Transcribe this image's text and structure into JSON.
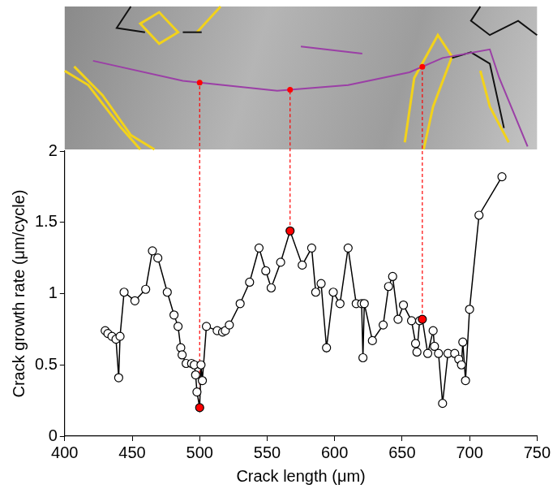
{
  "chart_data": {
    "type": "line",
    "xlabel": "Crack length (μm)",
    "ylabel": "Crack growth rate (μm/cycle)",
    "x": [
      430,
      432,
      435,
      438,
      440,
      441,
      444,
      452,
      460,
      465,
      469,
      476,
      481,
      484,
      486,
      487,
      490,
      494,
      496,
      497,
      498,
      500,
      501,
      502,
      505,
      513,
      517,
      519,
      522,
      530,
      537,
      544,
      549,
      553,
      560,
      567,
      576,
      583,
      586,
      590,
      594,
      599,
      604,
      610,
      616,
      620,
      621,
      622,
      628,
      636,
      640,
      643,
      647,
      651,
      657,
      660,
      661,
      663,
      665,
      669,
      673,
      674,
      677,
      680,
      684,
      689,
      692,
      694,
      695,
      697,
      700,
      707,
      724
    ],
    "values": [
      0.74,
      0.72,
      0.7,
      0.68,
      0.41,
      0.7,
      1.01,
      0.95,
      1.03,
      1.3,
      1.25,
      1.01,
      0.85,
      0.77,
      0.62,
      0.57,
      0.51,
      0.51,
      0.5,
      0.43,
      0.31,
      0.2,
      0.5,
      0.39,
      0.77,
      0.74,
      0.73,
      0.74,
      0.78,
      0.93,
      1.08,
      1.32,
      1.16,
      1.04,
      1.22,
      1.44,
      1.2,
      1.32,
      1.01,
      1.07,
      0.62,
      1.01,
      0.93,
      1.32,
      0.93,
      0.93,
      0.55,
      0.93,
      0.67,
      0.78,
      1.05,
      1.12,
      0.82,
      0.92,
      0.81,
      0.65,
      0.59,
      0.81,
      0.82,
      0.58,
      0.74,
      0.63,
      0.58,
      0.23,
      0.58,
      0.58,
      0.54,
      0.5,
      0.66,
      0.39,
      0.89,
      1.55,
      1.82
    ],
    "color": "#000000",
    "colors": [
      "#ffffff",
      "#ffffff",
      "#ffffff",
      "#ffffff",
      "#ffffff",
      "#ffffff",
      "#ffffff",
      "#ffffff",
      "#ffffff",
      "#ffffff",
      "#ffffff",
      "#ffffff",
      "#ffffff",
      "#ffffff",
      "#ffffff",
      "#ffffff",
      "#ffffff",
      "#ffffff",
      "#ffffff",
      "#ffffff",
      "#ffffff",
      "#ff0000",
      "#ffffff",
      "#ffffff",
      "#ffffff",
      "#ffffff",
      "#ffffff",
      "#ffffff",
      "#ffffff",
      "#ffffff",
      "#ffffff",
      "#ffffff",
      "#ffffff",
      "#ffffff",
      "#ffffff",
      "#ff0000",
      "#ffffff",
      "#ffffff",
      "#ffffff",
      "#ffffff",
      "#ffffff",
      "#ffffff",
      "#ffffff",
      "#ffffff",
      "#ffffff",
      "#ffffff",
      "#ffffff",
      "#ffffff",
      "#ffffff",
      "#ffffff",
      "#ffffff",
      "#ffffff",
      "#ffffff",
      "#ffffff",
      "#ffffff",
      "#ffffff",
      "#ffffff",
      "#ffffff",
      "#ff0000",
      "#ffffff",
      "#ffffff",
      "#ffffff",
      "#ffffff",
      "#ffffff",
      "#ffffff",
      "#ffffff",
      "#ffffff",
      "#ffffff",
      "#ffffff",
      "#ffffff",
      "#ffffff",
      "#ffffff",
      "#ffffff"
    ],
    "marker": "circle",
    "line_style": "solid",
    "xlim": [
      400,
      750
    ],
    "xticks": [
      400,
      450,
      500,
      550,
      600,
      650,
      700,
      750
    ],
    "ylim": [
      0,
      2
    ],
    "yticks": [
      0,
      0.5,
      1,
      1.5,
      2
    ],
    "grid": false
  }
}
